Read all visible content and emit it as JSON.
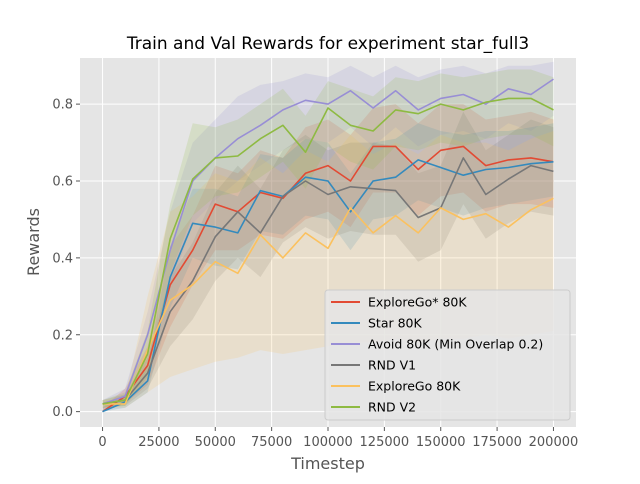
{
  "chart_data": {
    "type": "line",
    "title": "Train and Val Rewards for experiment star_full3",
    "xlabel": "Timestep",
    "ylabel": "Rewards",
    "xlim": [
      -10000,
      210000
    ],
    "ylim": [
      -0.04,
      0.92
    ],
    "xticks": [
      0,
      25000,
      50000,
      75000,
      100000,
      125000,
      150000,
      175000,
      200000
    ],
    "xtick_labels": [
      "0",
      "25000",
      "50000",
      "75000",
      "100000",
      "125000",
      "150000",
      "175000",
      "200000"
    ],
    "yticks": [
      0.0,
      0.2,
      0.4,
      0.6,
      0.8
    ],
    "ytick_labels": [
      "0.0",
      "0.2",
      "0.4",
      "0.6",
      "0.8"
    ],
    "grid": true,
    "legend_position": "lower-right",
    "x": [
      0,
      10000,
      20000,
      30000,
      40000,
      50000,
      60000,
      70000,
      80000,
      90000,
      100000,
      110000,
      120000,
      130000,
      140000,
      150000,
      160000,
      170000,
      180000,
      190000,
      200000
    ],
    "series": [
      {
        "name": "ExploreGo* 80K",
        "color": "#E24A33",
        "values": [
          0.0,
          0.04,
          0.12,
          0.33,
          0.42,
          0.54,
          0.52,
          0.57,
          0.555,
          0.62,
          0.64,
          0.6,
          0.69,
          0.69,
          0.63,
          0.68,
          0.69,
          0.64,
          0.655,
          0.66,
          0.65
        ],
        "lower": [
          0.0,
          0.02,
          0.07,
          0.22,
          0.33,
          0.42,
          0.42,
          0.46,
          0.45,
          0.5,
          0.52,
          0.48,
          0.57,
          0.57,
          0.51,
          0.56,
          0.57,
          0.52,
          0.54,
          0.54,
          0.53
        ],
        "upper": [
          0.01,
          0.06,
          0.17,
          0.43,
          0.51,
          0.64,
          0.62,
          0.68,
          0.66,
          0.74,
          0.76,
          0.72,
          0.79,
          0.8,
          0.75,
          0.8,
          0.8,
          0.76,
          0.77,
          0.78,
          0.76
        ]
      },
      {
        "name": "Star 80K",
        "color": "#348ABD",
        "values": [
          0.0,
          0.025,
          0.08,
          0.35,
          0.49,
          0.48,
          0.465,
          0.575,
          0.56,
          0.61,
          0.6,
          0.52,
          0.6,
          0.61,
          0.655,
          0.635,
          0.615,
          0.63,
          0.635,
          0.645,
          0.65
        ],
        "lower": [
          0.0,
          0.01,
          0.05,
          0.27,
          0.4,
          0.38,
          0.37,
          0.47,
          0.46,
          0.51,
          0.5,
          0.42,
          0.5,
          0.51,
          0.55,
          0.53,
          0.51,
          0.53,
          0.54,
          0.55,
          0.56
        ],
        "upper": [
          0.01,
          0.04,
          0.12,
          0.43,
          0.58,
          0.58,
          0.56,
          0.67,
          0.66,
          0.71,
          0.7,
          0.62,
          0.7,
          0.71,
          0.75,
          0.73,
          0.72,
          0.73,
          0.73,
          0.74,
          0.75
        ]
      },
      {
        "name": "Avoid 80K (Min Overlap 0.2)",
        "color": "#988ED5",
        "values": [
          0.02,
          0.04,
          0.2,
          0.42,
          0.6,
          0.66,
          0.71,
          0.745,
          0.785,
          0.81,
          0.8,
          0.835,
          0.79,
          0.835,
          0.785,
          0.815,
          0.825,
          0.8,
          0.84,
          0.825,
          0.865
        ],
        "lower": [
          0.01,
          0.02,
          0.13,
          0.32,
          0.49,
          0.55,
          0.6,
          0.64,
          0.68,
          0.71,
          0.7,
          0.74,
          0.69,
          0.74,
          0.69,
          0.72,
          0.73,
          0.71,
          0.75,
          0.73,
          0.77
        ],
        "upper": [
          0.03,
          0.06,
          0.26,
          0.52,
          0.7,
          0.76,
          0.82,
          0.85,
          0.86,
          0.88,
          0.87,
          0.9,
          0.87,
          0.9,
          0.87,
          0.89,
          0.9,
          0.88,
          0.9,
          0.9,
          0.91
        ]
      },
      {
        "name": "RND V1",
        "color": "#777777",
        "values": [
          0.02,
          0.03,
          0.1,
          0.26,
          0.34,
          0.455,
          0.52,
          0.465,
          0.56,
          0.6,
          0.565,
          0.585,
          0.58,
          0.575,
          0.505,
          0.53,
          0.66,
          0.565,
          0.605,
          0.64,
          0.625
        ],
        "lower": [
          0.01,
          0.015,
          0.06,
          0.17,
          0.24,
          0.34,
          0.4,
          0.35,
          0.44,
          0.48,
          0.45,
          0.47,
          0.46,
          0.46,
          0.39,
          0.42,
          0.54,
          0.45,
          0.49,
          0.52,
          0.51
        ],
        "upper": [
          0.03,
          0.045,
          0.14,
          0.35,
          0.44,
          0.57,
          0.64,
          0.58,
          0.68,
          0.72,
          0.68,
          0.7,
          0.7,
          0.69,
          0.62,
          0.64,
          0.78,
          0.68,
          0.72,
          0.76,
          0.74
        ]
      },
      {
        "name": "ExploreGo 80K",
        "color": "#FBC15E",
        "values": [
          0.02,
          0.02,
          0.16,
          0.29,
          0.33,
          0.39,
          0.36,
          0.46,
          0.4,
          0.465,
          0.425,
          0.53,
          0.465,
          0.51,
          0.465,
          0.53,
          0.5,
          0.515,
          0.48,
          0.525,
          0.555
        ],
        "lower": [
          0.01,
          0.01,
          0.05,
          0.09,
          0.11,
          0.13,
          0.14,
          0.16,
          0.15,
          0.16,
          0.17,
          0.18,
          0.18,
          0.19,
          0.18,
          0.19,
          0.19,
          0.2,
          0.19,
          0.2,
          0.21
        ],
        "upper": [
          0.03,
          0.04,
          0.3,
          0.52,
          0.56,
          0.62,
          0.6,
          0.66,
          0.62,
          0.68,
          0.65,
          0.72,
          0.67,
          0.7,
          0.67,
          0.72,
          0.7,
          0.7,
          0.68,
          0.71,
          0.73
        ]
      },
      {
        "name": "RND V2",
        "color": "#8EBA42",
        "values": [
          0.02,
          0.03,
          0.15,
          0.45,
          0.605,
          0.66,
          0.665,
          0.71,
          0.745,
          0.675,
          0.79,
          0.745,
          0.73,
          0.785,
          0.775,
          0.8,
          0.785,
          0.805,
          0.815,
          0.815,
          0.785
        ],
        "lower": [
          0.01,
          0.015,
          0.09,
          0.36,
          0.51,
          0.56,
          0.57,
          0.61,
          0.65,
          0.58,
          0.69,
          0.65,
          0.63,
          0.69,
          0.68,
          0.7,
          0.69,
          0.71,
          0.72,
          0.72,
          0.69
        ],
        "upper": [
          0.03,
          0.05,
          0.21,
          0.54,
          0.75,
          0.74,
          0.76,
          0.8,
          0.84,
          0.77,
          0.86,
          0.84,
          0.82,
          0.87,
          0.86,
          0.88,
          0.87,
          0.88,
          0.89,
          0.89,
          0.87
        ]
      }
    ]
  }
}
